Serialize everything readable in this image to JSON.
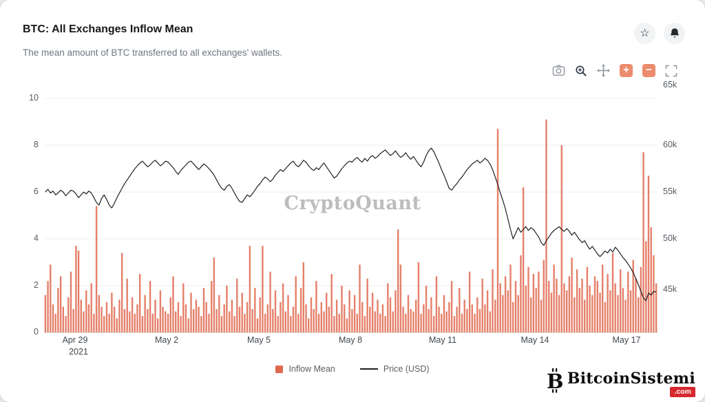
{
  "header": {
    "title": "BTC: All Exchanges Inflow Mean",
    "subtitle": "The mean amount of BTC transferred to all exchanges' wallets.",
    "star_glyph": "☆"
  },
  "toolbar": {
    "buttons": [
      "snapshot",
      "zoom",
      "pan",
      "zoom-in",
      "zoom-out",
      "reset-scale"
    ],
    "zoom_in_glyph": "+",
    "zoom_out_glyph": "−"
  },
  "watermark": "CryptoQuant",
  "legend": {
    "items": [
      {
        "label": "Inflow Mean",
        "swatch": "square",
        "color": "#e0684f"
      },
      {
        "label": "Price (USD)",
        "swatch": "line",
        "color": "#1c1e21"
      }
    ]
  },
  "branding": {
    "name": "BitcoinSistemi",
    "tld": ".com",
    "accent": "#d7282f"
  },
  "colors": {
    "bar": "#e0684f",
    "line": "#1c1e21",
    "accent_red": "#d7282f",
    "toolbar_square": "#ec8b6e",
    "grid": "#ececec"
  },
  "chart_data": {
    "type": "bar+line",
    "title": "BTC: All Exchanges Inflow Mean",
    "x_start_date": "Apr 28 2021",
    "x_end_date": "May 18 2021",
    "points_per_day": 12,
    "x_tick_labels": [
      "Apr 29",
      "May 2",
      "May 5",
      "May 8",
      "May 11",
      "May 14",
      "May 17"
    ],
    "x_tick_year": "2021",
    "x_tick_day_offsets": [
      1,
      4,
      7,
      10,
      13,
      16,
      19
    ],
    "grid": "horizontal",
    "legend_position": "bottom",
    "y_left": {
      "label": "Inflow Mean (BTC)",
      "range": [
        0,
        10
      ],
      "ticks": [
        0,
        2,
        4,
        6,
        8,
        10
      ],
      "tick_labels": [
        "10",
        "8",
        "6",
        "4",
        "2",
        "0"
      ]
    },
    "y_right": {
      "label": "Price (USD)",
      "range": [
        40,
        65
      ],
      "ticks": [
        45,
        50,
        55,
        60,
        65
      ],
      "tick_labels": [
        "65k",
        "60k",
        "55k",
        "50k",
        "45k"
      ]
    },
    "series": [
      {
        "name": "Inflow Mean",
        "type": "bar",
        "axis": "left",
        "unit": "BTC",
        "color": "#e0684f",
        "values": [
          1.6,
          2.2,
          2.9,
          1.2,
          0.8,
          1.9,
          2.4,
          1.1,
          0.7,
          1.5,
          2.6,
          1.0,
          3.7,
          3.5,
          1.4,
          0.9,
          1.8,
          1.2,
          2.1,
          0.8,
          5.4,
          1.6,
          1.1,
          0.7,
          1.3,
          0.8,
          1.7,
          1.1,
          0.6,
          1.4,
          3.4,
          1.0,
          2.3,
          0.9,
          1.5,
          0.8,
          1.2,
          2.5,
          0.7,
          1.6,
          1.0,
          2.2,
          0.8,
          1.4,
          0.6,
          1.8,
          1.1,
          0.9,
          0.8,
          1.5,
          2.4,
          0.9,
          1.3,
          0.7,
          2.1,
          1.2,
          0.6,
          1.7,
          1.0,
          1.4,
          1.1,
          0.7,
          1.9,
          1.3,
          0.8,
          2.2,
          3.2,
          1.0,
          1.6,
          0.7,
          1.2,
          2.0,
          0.9,
          1.4,
          0.7,
          2.3,
          1.1,
          1.7,
          0.8,
          1.3,
          3.7,
          1.0,
          1.9,
          0.6,
          1.5,
          3.7,
          0.8,
          1.2,
          2.6,
          1.0,
          1.8,
          0.7,
          1.3,
          2.1,
          0.9,
          1.6,
          0.7,
          1.1,
          2.4,
          0.8,
          1.9,
          3.0,
          1.2,
          0.6,
          1.5,
          1.0,
          2.2,
          0.8,
          1.3,
          0.9,
          1.7,
          1.1,
          2.5,
          0.7,
          1.4,
          0.8,
          2.0,
          1.2,
          0.6,
          1.8,
          1.0,
          1.6,
          0.8,
          2.9,
          1.3,
          0.7,
          2.3,
          1.1,
          1.7,
          0.9,
          1.4,
          0.8,
          1.2,
          0.7,
          2.1,
          1.5,
          0.9,
          1.8,
          4.4,
          2.9,
          1.1,
          0.8,
          1.6,
          1.0,
          0.9,
          1.4,
          3.0,
          0.8,
          1.2,
          2.0,
          1.0,
          1.5,
          0.7,
          2.4,
          1.1,
          0.8,
          1.6,
          0.9,
          1.3,
          2.2,
          0.7,
          1.1,
          1.9,
          0.8,
          1.4,
          1.0,
          2.6,
          1.2,
          0.8,
          1.5,
          1.0,
          2.3,
          1.2,
          1.8,
          0.9,
          2.7,
          1.4,
          8.7,
          2.1,
          1.6,
          2.4,
          1.8,
          2.9,
          1.3,
          2.2,
          1.6,
          3.3,
          6.2,
          2.0,
          2.8,
          1.5,
          2.5,
          1.9,
          2.6,
          1.4,
          3.1,
          9.1,
          2.2,
          1.7,
          2.9,
          2.3,
          1.6,
          8.0,
          2.1,
          1.8,
          2.4,
          3.2,
          1.5,
          2.7,
          1.9,
          2.3,
          1.4,
          2.8,
          2.0,
          1.6,
          2.4,
          2.2,
          1.7,
          2.9,
          1.3,
          2.5,
          1.8,
          3.4,
          2.1,
          1.6,
          2.7,
          1.9,
          1.4,
          2.6,
          1.8,
          3.1,
          2.3,
          1.5,
          2.8,
          7.7,
          3.9,
          6.7,
          4.5,
          3.3,
          2.1
        ]
      },
      {
        "name": "Price (USD)",
        "type": "line",
        "axis": "right",
        "unit": "thousand USD",
        "color": "#1c1e21",
        "values": [
          55.0,
          55.3,
          54.9,
          55.1,
          54.7,
          54.9,
          55.2,
          55.0,
          54.6,
          54.9,
          55.2,
          55.1,
          54.8,
          54.4,
          54.7,
          55.0,
          54.8,
          55.1,
          54.9,
          54.4,
          53.9,
          53.6,
          54.3,
          54.7,
          54.2,
          53.6,
          53.3,
          53.8,
          54.4,
          54.9,
          55.4,
          55.9,
          56.3,
          56.7,
          57.1,
          57.5,
          57.8,
          58.1,
          58.3,
          58.0,
          57.7,
          57.9,
          58.2,
          58.4,
          58.1,
          57.8,
          58.0,
          58.3,
          58.2,
          57.9,
          57.6,
          57.2,
          56.9,
          57.3,
          57.6,
          57.9,
          58.2,
          58.3,
          58.0,
          57.7,
          57.4,
          57.7,
          58.0,
          57.8,
          57.5,
          57.2,
          56.8,
          56.3,
          55.8,
          55.4,
          55.2,
          55.6,
          55.8,
          55.4,
          54.9,
          54.4,
          54.0,
          53.9,
          54.3,
          54.7,
          54.5,
          54.8,
          55.2,
          55.6,
          55.9,
          56.3,
          56.6,
          56.4,
          56.1,
          56.4,
          56.8,
          57.1,
          57.4,
          57.2,
          57.5,
          57.8,
          58.1,
          58.3,
          57.9,
          57.7,
          58.0,
          58.4,
          58.2,
          57.8,
          57.5,
          57.3,
          57.6,
          57.4,
          57.8,
          58.1,
          57.7,
          57.3,
          56.9,
          56.5,
          56.7,
          57.1,
          57.5,
          57.8,
          58.1,
          58.3,
          58.2,
          58.5,
          58.7,
          58.4,
          58.2,
          58.6,
          58.3,
          58.7,
          58.9,
          58.6,
          58.8,
          59.1,
          59.3,
          59.5,
          59.2,
          58.9,
          59.1,
          59.4,
          59.0,
          58.7,
          58.9,
          59.2,
          58.8,
          58.5,
          58.8,
          58.4,
          58.0,
          57.7,
          58.2,
          58.9,
          59.4,
          59.7,
          59.3,
          58.7,
          58.1,
          57.4,
          56.8,
          56.1,
          55.4,
          55.2,
          55.6,
          55.9,
          56.3,
          56.6,
          57.0,
          57.4,
          57.7,
          58.0,
          58.2,
          58.4,
          58.1,
          58.3,
          58.6,
          58.4,
          58.0,
          57.4,
          56.6,
          55.8,
          54.9,
          54.1,
          53.2,
          52.1,
          51.0,
          50.0,
          50.6,
          51.2,
          50.7,
          51.0,
          51.3,
          50.9,
          51.2,
          51.0,
          50.6,
          50.2,
          49.6,
          49.3,
          49.8,
          50.2,
          50.6,
          50.9,
          51.1,
          51.3,
          51.0,
          50.8,
          51.1,
          50.8,
          50.4,
          50.7,
          50.3,
          49.9,
          49.6,
          49.8,
          49.3,
          48.9,
          49.2,
          48.8,
          48.4,
          48.1,
          48.4,
          48.7,
          48.5,
          48.9,
          48.6,
          49.1,
          48.8,
          48.4,
          48.0,
          47.7,
          47.3,
          46.9,
          46.4,
          45.8,
          45.1,
          44.4,
          43.7,
          43.4,
          44.2,
          44.0,
          44.4,
          44.3
        ]
      }
    ]
  }
}
